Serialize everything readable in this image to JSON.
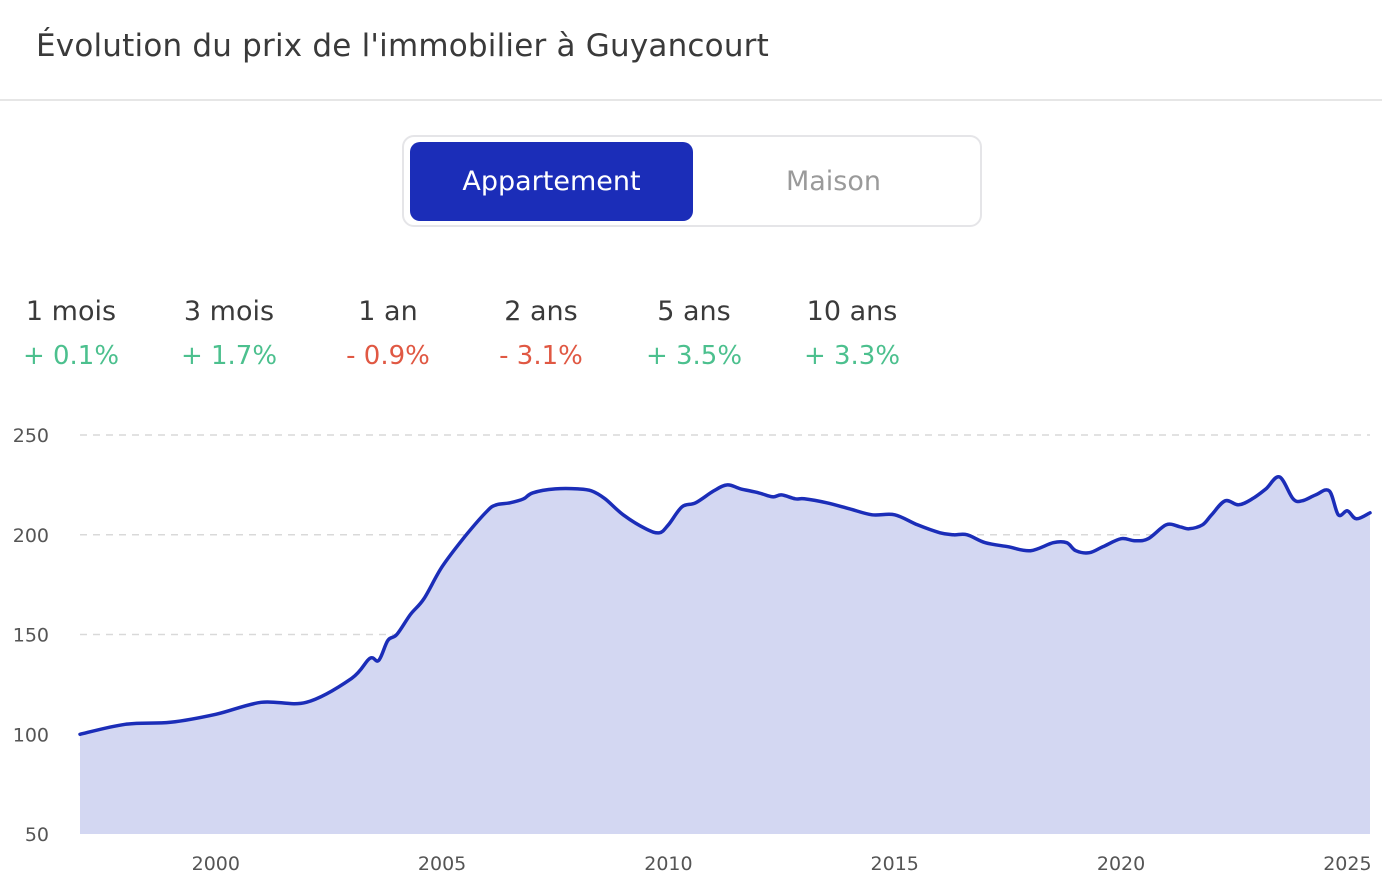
{
  "header": {
    "title": "Évolution du prix de l'immobilier à Guyancourt"
  },
  "toggle": {
    "options": [
      "Appartement",
      "Maison"
    ],
    "selected": "Appartement"
  },
  "stats": [
    {
      "label": "1 mois",
      "value": "+ 0.1%",
      "trend": "positive"
    },
    {
      "label": "3 mois",
      "value": "+ 1.7%",
      "trend": "positive"
    },
    {
      "label": "1 an",
      "value": "- 0.9%",
      "trend": "negative"
    },
    {
      "label": "2 ans",
      "value": "- 3.1%",
      "trend": "negative"
    },
    {
      "label": "5 ans",
      "value": "+ 3.5%",
      "trend": "positive"
    },
    {
      "label": "10 ans",
      "value": "+ 3.3%",
      "trend": "positive"
    }
  ],
  "colors": {
    "accent": "#1b2db8",
    "area_fill": "#d3d7f2",
    "positive": "#4cc08e",
    "negative": "#e05843"
  },
  "chart_data": {
    "type": "area",
    "title": "",
    "xlabel": "",
    "ylabel": "",
    "xlim": [
      1997,
      2025.5
    ],
    "ylim": [
      50,
      250
    ],
    "yticks": [
      50,
      100,
      150,
      200,
      250
    ],
    "xticks": [
      2000,
      2005,
      2010,
      2015,
      2020,
      2025
    ],
    "grid": true,
    "series": [
      {
        "x": [
          1997,
          1998,
          1999,
          2000,
          2001,
          2002,
          2003,
          2003.4,
          2003.6,
          2003.8,
          2004,
          2004.3,
          2004.6,
          2005,
          2005.5,
          2006,
          2006.2,
          2006.5,
          2006.8,
          2007,
          2007.5,
          2008,
          2008.3,
          2008.6,
          2009,
          2009.5,
          2009.8,
          2010,
          2010.3,
          2010.6,
          2011,
          2011.3,
          2011.6,
          2012,
          2012.3,
          2012.5,
          2012.8,
          2013,
          2013.5,
          2014,
          2014.5,
          2015,
          2015.5,
          2016,
          2016.3,
          2016.6,
          2017,
          2017.5,
          2018,
          2018.5,
          2018.8,
          2019,
          2019.3,
          2019.6,
          2020,
          2020.3,
          2020.6,
          2021,
          2021.3,
          2021.5,
          2021.8,
          2022,
          2022.3,
          2022.6,
          2022.9,
          2023.2,
          2023.5,
          2023.8,
          2024,
          2024.3,
          2024.6,
          2024.8,
          2025,
          2025.2,
          2025.5
        ],
        "y": [
          100,
          105,
          106,
          110,
          116,
          116,
          128,
          138,
          137,
          147,
          150,
          160,
          168,
          184,
          199,
          212,
          215,
          216,
          218,
          221,
          223,
          223,
          222,
          218,
          210,
          203,
          201,
          205,
          214,
          216,
          222,
          225,
          223,
          221,
          219,
          220,
          218,
          218,
          216,
          213,
          210,
          210,
          205,
          201,
          200,
          200,
          196,
          194,
          192,
          196,
          196,
          192,
          191,
          194,
          198,
          197,
          198,
          205,
          204,
          203,
          205,
          210,
          217,
          215,
          218,
          223,
          229,
          218,
          217,
          220,
          222,
          210,
          212,
          208,
          211
        ]
      }
    ]
  }
}
